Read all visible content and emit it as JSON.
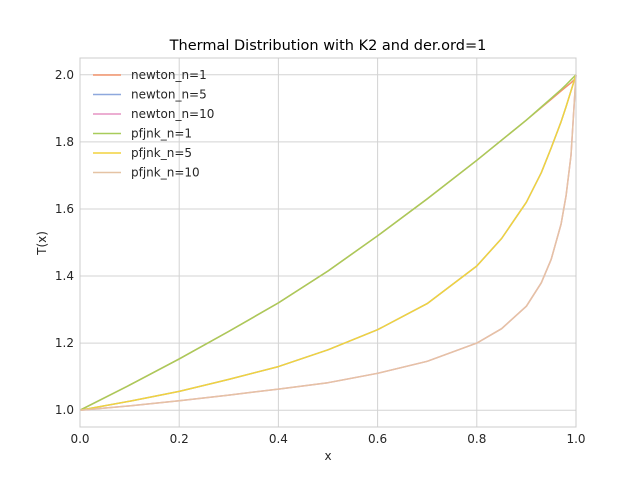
{
  "chart_data": {
    "type": "line",
    "title": "Thermal Distribution with K2 and der.ord=1",
    "xlabel": "x",
    "ylabel": "T(x)",
    "xlim": [
      0.0,
      1.0
    ],
    "ylim": [
      0.95,
      2.05
    ],
    "xticks": [
      "0.0",
      "0.2",
      "0.4",
      "0.6",
      "0.8",
      "1.0"
    ],
    "yticks": [
      "1.0",
      "1.2",
      "1.4",
      "1.6",
      "1.8",
      "2.0"
    ],
    "grid": true,
    "legend_position": "upper-left",
    "x": [
      0.0,
      0.1,
      0.2,
      0.3,
      0.4,
      0.5,
      0.6,
      0.7,
      0.8,
      0.85,
      0.9,
      0.93,
      0.95,
      0.97,
      0.98,
      0.99,
      1.0
    ],
    "series": [
      {
        "name": "newton_n=1",
        "color": "#f2936b",
        "values": [
          1.0,
          1.075,
          1.153,
          1.235,
          1.32,
          1.415,
          1.52,
          1.63,
          1.745,
          1.805,
          1.865,
          1.902,
          1.927,
          1.952,
          1.964,
          1.976,
          1.99
        ]
      },
      {
        "name": "newton_n=5",
        "color": "#8ea8dd",
        "values": [
          1.0,
          1.027,
          1.056,
          1.092,
          1.13,
          1.18,
          1.24,
          1.318,
          1.43,
          1.512,
          1.62,
          1.708,
          1.782,
          1.86,
          1.905,
          1.952,
          2.0
        ]
      },
      {
        "name": "newton_n=10",
        "color": "#e594c4",
        "values": [
          1.0,
          1.013,
          1.028,
          1.045,
          1.063,
          1.082,
          1.11,
          1.146,
          1.2,
          1.243,
          1.31,
          1.38,
          1.45,
          1.555,
          1.64,
          1.76,
          2.0
        ]
      },
      {
        "name": "pfjnk_n=1",
        "color": "#a8cc5a",
        "values": [
          1.0,
          1.075,
          1.153,
          1.235,
          1.32,
          1.415,
          1.52,
          1.63,
          1.745,
          1.805,
          1.865,
          1.904,
          1.93,
          1.956,
          1.97,
          1.985,
          2.0
        ]
      },
      {
        "name": "pfjnk_n=5",
        "color": "#f2d23d",
        "values": [
          1.0,
          1.027,
          1.056,
          1.092,
          1.13,
          1.18,
          1.24,
          1.318,
          1.43,
          1.512,
          1.62,
          1.708,
          1.782,
          1.86,
          1.905,
          1.952,
          2.0
        ]
      },
      {
        "name": "pfjnk_n=10",
        "color": "#e5c3a4",
        "values": [
          1.0,
          1.013,
          1.028,
          1.045,
          1.063,
          1.082,
          1.11,
          1.146,
          1.2,
          1.243,
          1.31,
          1.38,
          1.45,
          1.555,
          1.64,
          1.76,
          2.0
        ]
      }
    ]
  }
}
